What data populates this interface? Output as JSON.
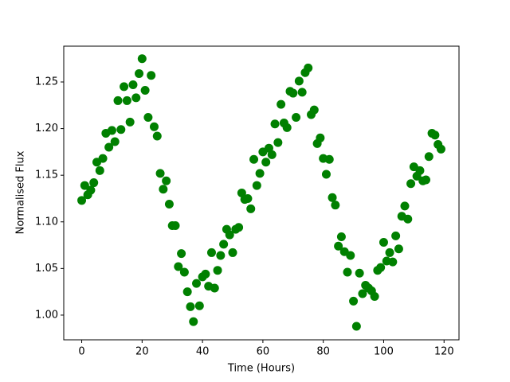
{
  "chart_data": {
    "type": "scatter",
    "x_label": "Time (Hours)",
    "y_label": "Normalised Flux",
    "color": "#008000",
    "x": [
      0,
      1,
      2,
      3,
      4,
      5,
      6,
      7,
      8,
      9,
      10,
      11,
      12,
      13,
      14,
      15,
      16,
      17,
      18,
      19,
      20,
      21,
      22,
      23,
      24,
      25,
      26,
      27,
      28,
      29,
      30,
      31,
      32,
      33,
      34,
      35,
      36,
      37,
      38,
      39,
      40,
      41,
      42,
      43,
      44,
      45,
      46,
      47,
      48,
      49,
      50,
      51,
      52,
      53,
      54,
      55,
      56,
      57,
      58,
      59,
      60,
      61,
      62,
      63,
      64,
      65,
      66,
      67,
      68,
      69,
      70,
      71,
      72,
      73,
      74,
      75,
      76,
      77,
      78,
      79,
      80,
      81,
      82,
      83,
      84,
      85,
      86,
      87,
      88,
      89,
      90,
      91,
      92,
      93,
      94,
      95,
      96,
      97,
      98,
      99,
      100,
      101,
      102,
      103,
      104,
      105,
      106,
      107,
      108,
      109,
      110,
      111,
      112,
      113,
      114,
      115,
      116,
      117,
      118,
      119
    ],
    "values": [
      1.123,
      1.139,
      1.129,
      1.134,
      1.142,
      1.164,
      1.155,
      1.168,
      1.195,
      1.18,
      1.198,
      1.186,
      1.23,
      1.199,
      1.245,
      1.23,
      1.207,
      1.247,
      1.233,
      1.259,
      1.275,
      1.241,
      1.212,
      1.257,
      1.202,
      1.192,
      1.152,
      1.135,
      1.144,
      1.119,
      1.096,
      1.096,
      1.052,
      1.066,
      1.046,
      1.025,
      1.009,
      0.993,
      1.034,
      1.01,
      1.041,
      1.044,
      1.031,
      1.067,
      1.029,
      1.048,
      1.064,
      1.076,
      1.092,
      1.086,
      1.067,
      1.092,
      1.094,
      1.131,
      1.124,
      1.125,
      1.114,
      1.167,
      1.139,
      1.152,
      1.175,
      1.164,
      1.179,
      1.172,
      1.205,
      1.185,
      1.226,
      1.206,
      1.201,
      1.24,
      1.238,
      1.212,
      1.251,
      1.239,
      1.26,
      1.265,
      1.215,
      1.22,
      1.184,
      1.19,
      1.168,
      1.151,
      1.167,
      1.126,
      1.118,
      1.074,
      1.084,
      1.068,
      1.046,
      1.064,
      1.015,
      0.988,
      1.045,
      1.023,
      1.032,
      1.029,
      1.026,
      1.02,
      1.048,
      1.051,
      1.078,
      1.058,
      1.067,
      1.057,
      1.085,
      1.071,
      1.106,
      1.117,
      1.103,
      1.141,
      1.159,
      1.149,
      1.155,
      1.144,
      1.145,
      1.17,
      1.195,
      1.193,
      1.183,
      1.178
    ],
    "xlim": [
      -5.95,
      124.95
    ],
    "ylim": [
      0.9735,
      1.2884
    ],
    "xticks": [
      0,
      20,
      40,
      60,
      80,
      100,
      120
    ],
    "yticks": [
      {
        "value": 1,
        "label": "1.00"
      },
      1.05,
      {
        "value": 1.1,
        "label": "1.10"
      },
      1.15,
      {
        "value": 1.2,
        "label": "1.20"
      },
      1.25
    ]
  }
}
